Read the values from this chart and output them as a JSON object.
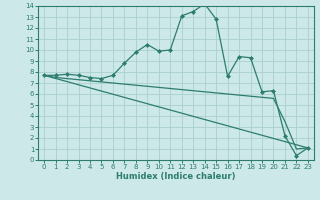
{
  "xlabel": "Humidex (Indice chaleur)",
  "ylabel": "",
  "bg_color": "#cce8e8",
  "grid_color": "#aad0d0",
  "line_color": "#2d7d6e",
  "marker_color": "#2d7d6e",
  "xlim": [
    -0.5,
    23.5
  ],
  "ylim": [
    0,
    14
  ],
  "xticks": [
    0,
    1,
    2,
    3,
    4,
    5,
    6,
    7,
    8,
    9,
    10,
    11,
    12,
    13,
    14,
    15,
    16,
    17,
    18,
    19,
    20,
    21,
    22,
    23
  ],
  "yticks": [
    0,
    1,
    2,
    3,
    4,
    5,
    6,
    7,
    8,
    9,
    10,
    11,
    12,
    13,
    14
  ],
  "series1_x": [
    0,
    1,
    2,
    3,
    4,
    5,
    6,
    7,
    8,
    9,
    10,
    11,
    12,
    13,
    14,
    15,
    16,
    17,
    18,
    19,
    20,
    21,
    22,
    23
  ],
  "series1_y": [
    7.7,
    7.7,
    7.8,
    7.7,
    7.5,
    7.4,
    7.7,
    8.8,
    9.8,
    10.5,
    9.9,
    10.0,
    13.1,
    13.5,
    14.2,
    12.8,
    7.6,
    9.4,
    9.3,
    6.2,
    6.3,
    2.2,
    0.4,
    1.1
  ],
  "series2_x": [
    0,
    1,
    2,
    3,
    4,
    5,
    6,
    7,
    8,
    9,
    10,
    11,
    12,
    13,
    14,
    15,
    16,
    17,
    18,
    19,
    20,
    21,
    22,
    23
  ],
  "series2_y": [
    7.7,
    7.5,
    7.4,
    7.3,
    7.2,
    7.1,
    7.0,
    6.9,
    6.8,
    6.7,
    6.6,
    6.5,
    6.4,
    6.3,
    6.2,
    6.1,
    6.0,
    5.9,
    5.8,
    5.7,
    5.6,
    3.5,
    1.0,
    1.1
  ],
  "series3_x": [
    0,
    23
  ],
  "series3_y": [
    7.7,
    1.1
  ]
}
